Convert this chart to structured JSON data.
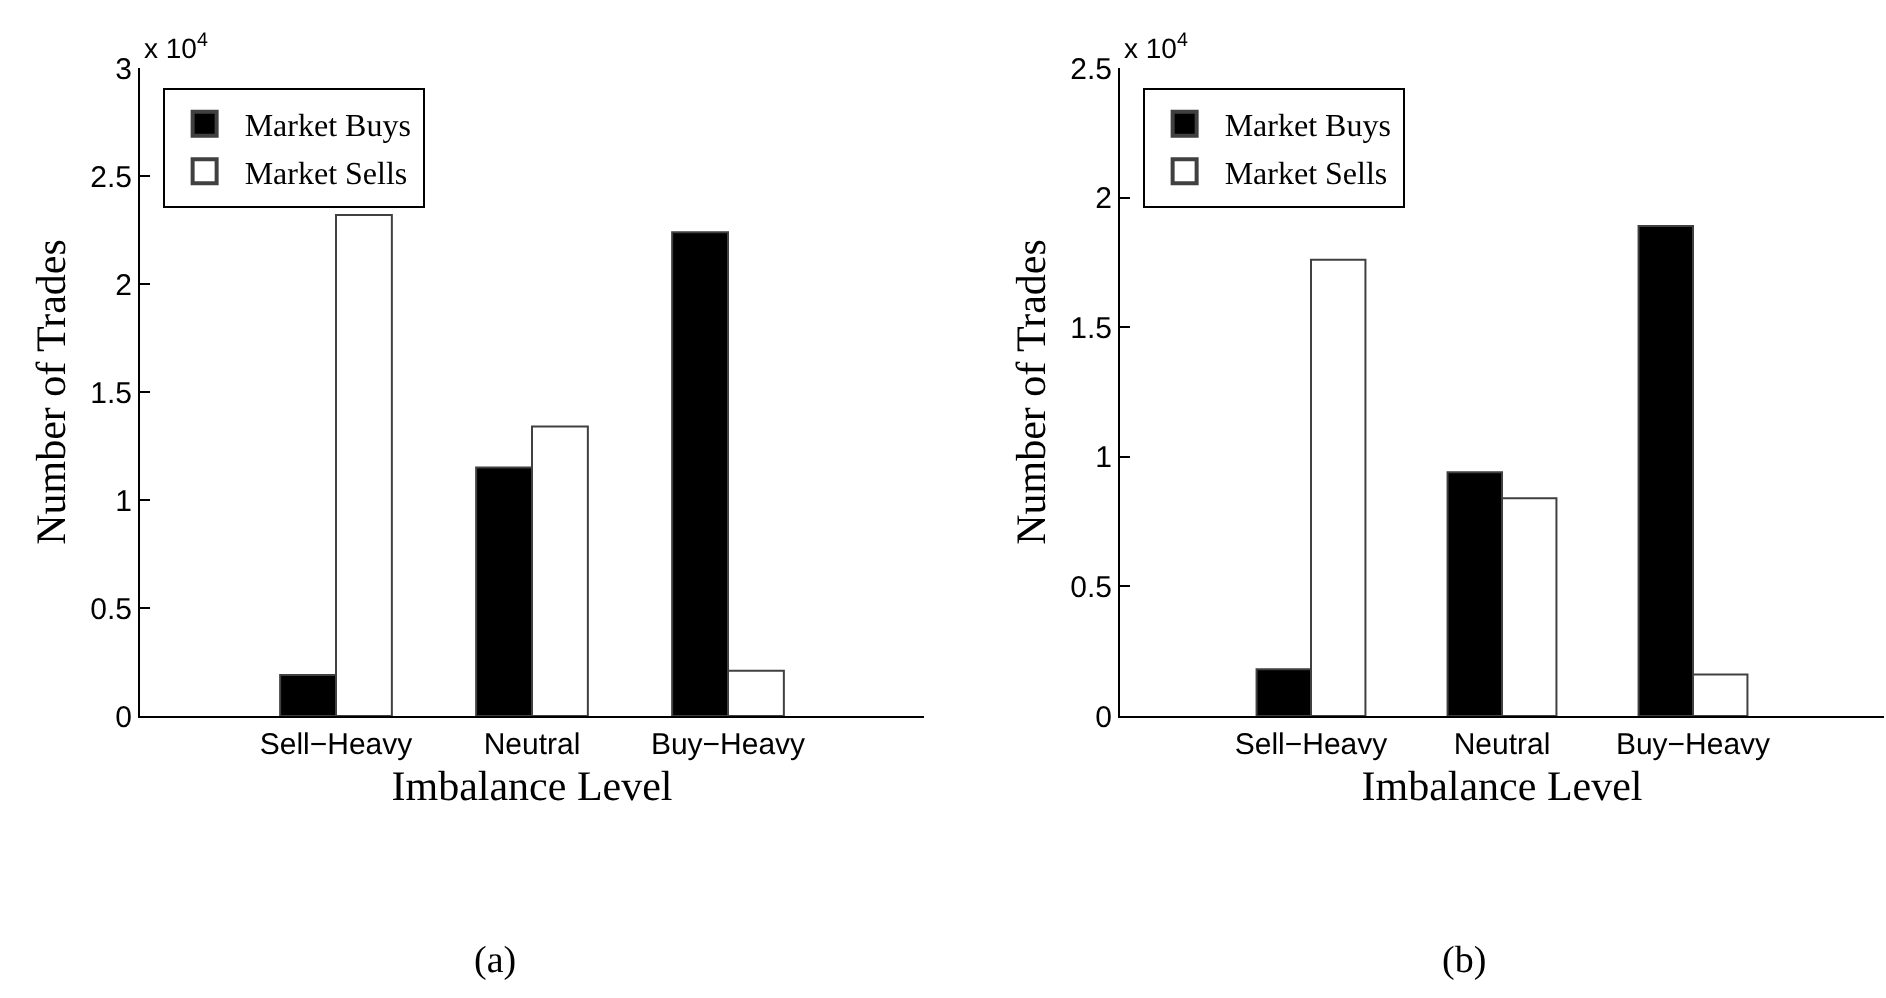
{
  "chart_data": [
    {
      "type": "bar",
      "xlabel": "Imbalance Level",
      "ylabel": "Number of Trades",
      "categories": [
        "Sell−Heavy",
        "Neutral",
        "Buy−Heavy"
      ],
      "series": [
        {
          "name": "Market Buys",
          "color": "#000000",
          "values": [
            0.19,
            1.15,
            2.24
          ]
        },
        {
          "name": "Market Sells",
          "color": "#ffffff",
          "values": [
            2.32,
            1.34,
            0.21
          ]
        }
      ],
      "ylim": [
        0,
        3
      ],
      "yticks": [
        0,
        0.5,
        1,
        1.5,
        2,
        2.5,
        3
      ],
      "legend": "top left",
      "grid": false,
      "annotations": [
        "x 10$^{4}$",
        "(a)"
      ]
    },
    {
      "type": "bar",
      "xlabel": "Imbalance Level",
      "ylabel": "Number of Trades",
      "categories": [
        "Sell−Heavy",
        "Neutral",
        "Buy−Heavy"
      ],
      "series": [
        {
          "name": "Market Buys",
          "color": "#000000",
          "values": [
            0.18,
            0.94,
            1.89
          ]
        },
        {
          "name": "Market Sells",
          "color": "#ffffff",
          "values": [
            1.76,
            0.84,
            0.16
          ]
        }
      ],
      "ylim": [
        0,
        2.5
      ],
      "yticks": [
        0,
        0.5,
        1,
        1.5,
        2,
        2.5
      ],
      "legend": "top left",
      "grid": false,
      "annotations": [
        "x 10$^{4}$",
        "(b)"
      ]
    }
  ]
}
